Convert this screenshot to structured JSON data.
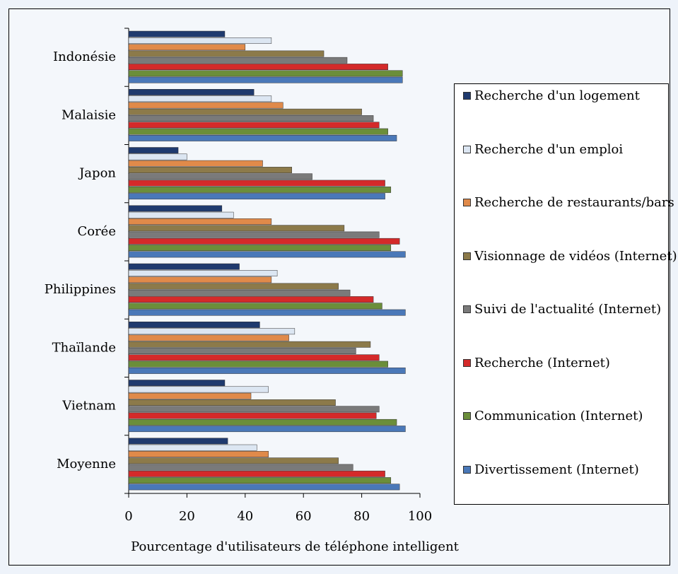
{
  "chart_data": {
    "type": "hbar",
    "x_label": "Pourcentage d'utilisateurs de téléphone intelligent",
    "categories": [
      "Indonésie",
      "Malaisie",
      "Japon",
      "Corée",
      "Philippines",
      "Thaïlande",
      "Vietnam",
      "Moyenne"
    ],
    "series": [
      {
        "name": "Recherche d'un logement",
        "color": "#1f3a6e",
        "values": [
          33,
          43,
          17,
          32,
          38,
          45,
          33,
          34
        ]
      },
      {
        "name": "Recherche d'un emploi",
        "color": "#dce6f2",
        "values": [
          49,
          49,
          20,
          36,
          51,
          57,
          48,
          44
        ]
      },
      {
        "name": "Recherche de restaurants/bars",
        "color": "#e08a4a",
        "values": [
          40,
          53,
          46,
          49,
          49,
          55,
          42,
          48
        ]
      },
      {
        "name": "Visionnage de vidéos (Internet)",
        "color": "#8c7a4a",
        "values": [
          67,
          80,
          56,
          74,
          72,
          83,
          71,
          72
        ]
      },
      {
        "name": "Suivi de l'actualité (Internet)",
        "color": "#7a7a7a",
        "values": [
          75,
          84,
          63,
          86,
          76,
          78,
          86,
          77
        ]
      },
      {
        "name": "Recherche (Internet)",
        "color": "#d42a2a",
        "values": [
          89,
          86,
          88,
          93,
          84,
          86,
          85,
          88
        ]
      },
      {
        "name": "Communication (Internet)",
        "color": "#6b8e3a",
        "values": [
          94,
          89,
          90,
          90,
          87,
          89,
          92,
          90
        ]
      },
      {
        "name": "Divertissement (Internet)",
        "color": "#4a78b8",
        "values": [
          94,
          92,
          88,
          95,
          95,
          95,
          95,
          93
        ]
      }
    ],
    "xlim": [
      0,
      100
    ],
    "xticks": [
      0,
      20,
      40,
      60,
      80,
      100
    ],
    "legend": "right"
  }
}
